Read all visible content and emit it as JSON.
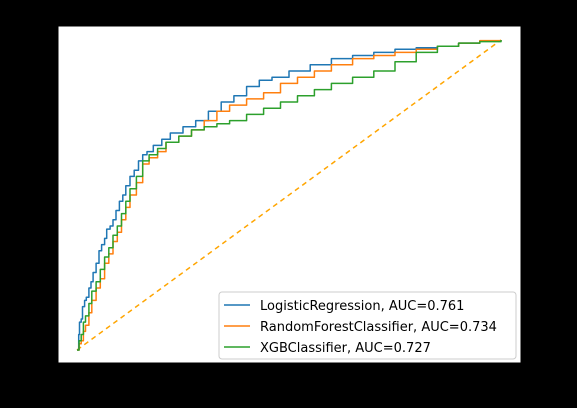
{
  "chart_data": {
    "type": "line",
    "title": "",
    "xlabel": "",
    "ylabel": "",
    "xlim": [
      0,
      1
    ],
    "ylim": [
      0,
      1
    ],
    "grid": false,
    "legend_position": "bottom-right",
    "series": [
      {
        "name": "LogisticRegression, AUC=0.761",
        "color": "#1f77b4",
        "style": "solid",
        "x": [
          0,
          0.004,
          0.006,
          0.01,
          0.013,
          0.018,
          0.022,
          0.028,
          0.033,
          0.038,
          0.045,
          0.052,
          0.058,
          0.065,
          0.07,
          0.078,
          0.085,
          0.092,
          0.1,
          0.108,
          0.115,
          0.125,
          0.135,
          0.145,
          0.155,
          0.165,
          0.18,
          0.2,
          0.22,
          0.25,
          0.28,
          0.31,
          0.34,
          0.37,
          0.4,
          0.43,
          0.46,
          0.5,
          0.55,
          0.6,
          0.65,
          0.7,
          0.75,
          0.8,
          0.85,
          0.9,
          0.95,
          1.0
        ],
        "y": [
          0,
          0.05,
          0.09,
          0.1,
          0.14,
          0.16,
          0.17,
          0.2,
          0.22,
          0.25,
          0.28,
          0.32,
          0.34,
          0.36,
          0.39,
          0.4,
          0.42,
          0.45,
          0.48,
          0.5,
          0.53,
          0.56,
          0.58,
          0.61,
          0.63,
          0.64,
          0.66,
          0.68,
          0.7,
          0.72,
          0.74,
          0.77,
          0.8,
          0.82,
          0.85,
          0.87,
          0.88,
          0.9,
          0.92,
          0.94,
          0.95,
          0.96,
          0.97,
          0.975,
          0.98,
          0.99,
          0.997,
          1.0
        ]
      },
      {
        "name": "RandomForestClassifier, AUC=0.734",
        "color": "#ff7f0e",
        "style": "solid",
        "x": [
          0,
          0.005,
          0.01,
          0.015,
          0.02,
          0.028,
          0.035,
          0.045,
          0.055,
          0.065,
          0.075,
          0.085,
          0.095,
          0.105,
          0.115,
          0.125,
          0.14,
          0.155,
          0.17,
          0.19,
          0.21,
          0.24,
          0.27,
          0.3,
          0.33,
          0.36,
          0.4,
          0.44,
          0.48,
          0.52,
          0.56,
          0.6,
          0.65,
          0.7,
          0.75,
          0.8,
          0.85,
          0.9,
          0.95,
          1.0
        ],
        "y": [
          0,
          0.02,
          0.03,
          0.06,
          0.08,
          0.12,
          0.16,
          0.2,
          0.23,
          0.28,
          0.31,
          0.35,
          0.38,
          0.42,
          0.46,
          0.5,
          0.54,
          0.6,
          0.62,
          0.64,
          0.67,
          0.69,
          0.71,
          0.74,
          0.77,
          0.79,
          0.81,
          0.83,
          0.86,
          0.88,
          0.9,
          0.92,
          0.94,
          0.95,
          0.96,
          0.97,
          0.98,
          0.99,
          0.998,
          1.0
        ]
      },
      {
        "name": "XGBClassifier, AUC=0.727",
        "color": "#2ca02c",
        "style": "solid",
        "x": [
          0,
          0.005,
          0.01,
          0.015,
          0.02,
          0.028,
          0.035,
          0.045,
          0.055,
          0.065,
          0.075,
          0.085,
          0.095,
          0.105,
          0.115,
          0.125,
          0.14,
          0.155,
          0.17,
          0.19,
          0.21,
          0.24,
          0.27,
          0.3,
          0.33,
          0.36,
          0.4,
          0.44,
          0.48,
          0.52,
          0.56,
          0.6,
          0.65,
          0.7,
          0.75,
          0.8,
          0.85,
          0.9,
          0.95,
          1.0
        ],
        "y": [
          0,
          0.03,
          0.05,
          0.09,
          0.11,
          0.15,
          0.19,
          0.22,
          0.26,
          0.3,
          0.33,
          0.37,
          0.4,
          0.44,
          0.48,
          0.52,
          0.56,
          0.61,
          0.63,
          0.65,
          0.67,
          0.69,
          0.71,
          0.72,
          0.73,
          0.74,
          0.76,
          0.78,
          0.8,
          0.82,
          0.84,
          0.86,
          0.88,
          0.9,
          0.93,
          0.96,
          0.98,
          0.99,
          0.995,
          1.0
        ]
      },
      {
        "name": "",
        "color": "#ffa500",
        "style": "dashed",
        "x": [
          0,
          1
        ],
        "y": [
          0,
          1
        ]
      }
    ]
  }
}
